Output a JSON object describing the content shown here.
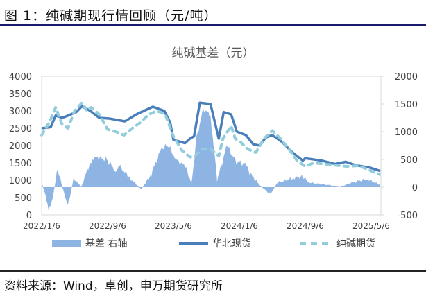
{
  "figure_title": "图 1：纯碱期现行情回顾（元/吨）",
  "source": "资料来源：Wind，卓创，申万期货研究所",
  "chart_data": {
    "type": "line",
    "title": "纯碱基差（元）",
    "x_unit": "months since 2022/1/6",
    "x_ticks": [
      {
        "m": 0,
        "label": "2022/1/6"
      },
      {
        "m": 8,
        "label": "2022/9/6"
      },
      {
        "m": 16,
        "label": "2023/5/6"
      },
      {
        "m": 24,
        "label": "2024/1/6"
      },
      {
        "m": 32,
        "label": "2024/9/6"
      },
      {
        "m": 40,
        "label": "2025/5/6"
      }
    ],
    "y_left": {
      "min": 0,
      "max": 4000,
      "ticks": [
        0,
        500,
        1000,
        1500,
        2000,
        2500,
        3000,
        3500,
        4000
      ]
    },
    "y_right": {
      "min": -500,
      "max": 2000,
      "ticks": [
        -500,
        0,
        500,
        1000,
        1500,
        2000
      ]
    },
    "legend_position": "bottom",
    "colors": {
      "basis": "#8eb4e3",
      "spot": "#4a7ebb",
      "futures": "#92cddc"
    },
    "series": [
      {
        "name": "基差 右轴",
        "axis": "right",
        "kind": "area",
        "points": [
          [
            0,
            100
          ],
          [
            0.84,
            -375
          ],
          [
            1.12,
            -375
          ],
          [
            1.96,
            333
          ],
          [
            2.5,
            0
          ],
          [
            3.2,
            -333
          ],
          [
            3.9,
            167
          ],
          [
            4.8,
            0
          ],
          [
            5.9,
            458
          ],
          [
            6.7,
            540
          ],
          [
            7.9,
            500
          ],
          [
            9,
            290
          ],
          [
            9.5,
            375
          ],
          [
            10.7,
            167
          ],
          [
            12.1,
            -40
          ],
          [
            13.2,
            208
          ],
          [
            14.6,
            708
          ],
          [
            15.4,
            750
          ],
          [
            16.3,
            500
          ],
          [
            17.4,
            375
          ],
          [
            18.2,
            80
          ],
          [
            18.8,
            875
          ],
          [
            19.6,
            1417
          ],
          [
            20.5,
            1290
          ],
          [
            21.3,
            125
          ],
          [
            22.5,
            750
          ],
          [
            23.6,
            458
          ],
          [
            24.7,
            417
          ],
          [
            25.5,
            208
          ],
          [
            26.7,
            0
          ],
          [
            27.8,
            -125
          ],
          [
            28.6,
            80
          ],
          [
            30.6,
            167
          ],
          [
            31.7,
            187
          ],
          [
            32.5,
            80
          ],
          [
            34.8,
            40
          ],
          [
            36.2,
            0
          ],
          [
            37.6,
            80
          ],
          [
            39.5,
            146
          ],
          [
            41.1,
            40
          ]
        ]
      },
      {
        "name": "华北现货",
        "axis": "left",
        "kind": "line",
        "points": [
          [
            0,
            2500
          ],
          [
            1.1,
            2533
          ],
          [
            1.7,
            2867
          ],
          [
            2.5,
            2800
          ],
          [
            3.2,
            2867
          ],
          [
            4.2,
            2967
          ],
          [
            4.9,
            3133
          ],
          [
            5.9,
            3000
          ],
          [
            7,
            2800
          ],
          [
            8.2,
            2780
          ],
          [
            10.1,
            2700
          ],
          [
            11.5,
            2900
          ],
          [
            13.5,
            3120
          ],
          [
            14.9,
            3000
          ],
          [
            15.6,
            2667
          ],
          [
            16,
            2167
          ],
          [
            17.4,
            2067
          ],
          [
            18,
            2200
          ],
          [
            18.5,
            2267
          ],
          [
            19.2,
            3233
          ],
          [
            20.5,
            3200
          ],
          [
            21.5,
            2200
          ],
          [
            22.1,
            2967
          ],
          [
            23,
            2900
          ],
          [
            23.7,
            2400
          ],
          [
            24.8,
            2300
          ],
          [
            25.7,
            2033
          ],
          [
            26.5,
            2000
          ],
          [
            27.2,
            2233
          ],
          [
            28,
            2300
          ],
          [
            29.2,
            2100
          ],
          [
            30.3,
            1833
          ],
          [
            31.7,
            1567
          ],
          [
            32,
            1633
          ],
          [
            34,
            1567
          ],
          [
            35.6,
            1467
          ],
          [
            36.9,
            1533
          ],
          [
            38.1,
            1433
          ],
          [
            39.8,
            1367
          ],
          [
            41.1,
            1267
          ]
        ]
      },
      {
        "name": "纯碱期货",
        "axis": "left",
        "kind": "dashed",
        "points": [
          [
            0,
            2300
          ],
          [
            1,
            2700
          ],
          [
            1.7,
            3100
          ],
          [
            2.5,
            2600
          ],
          [
            3.2,
            2500
          ],
          [
            4,
            3000
          ],
          [
            4.9,
            3233
          ],
          [
            5.5,
            3000
          ],
          [
            6,
            3100
          ],
          [
            7,
            2900
          ],
          [
            8,
            2467
          ],
          [
            9,
            2400
          ],
          [
            10,
            2300
          ],
          [
            11,
            2500
          ],
          [
            12,
            2667
          ],
          [
            13,
            2900
          ],
          [
            14,
            3000
          ],
          [
            15,
            2900
          ],
          [
            16,
            2267
          ],
          [
            17,
            1867
          ],
          [
            18,
            1667
          ],
          [
            18.6,
            1700
          ],
          [
            19.5,
            1900
          ],
          [
            20.5,
            1900
          ],
          [
            21.5,
            1700
          ],
          [
            22,
            2200
          ],
          [
            23,
            2567
          ],
          [
            23.5,
            2200
          ],
          [
            24,
            2133
          ],
          [
            25,
            1900
          ],
          [
            26,
            1800
          ],
          [
            27,
            2200
          ],
          [
            28,
            2433
          ],
          [
            29,
            2200
          ],
          [
            30,
            1900
          ],
          [
            31,
            1567
          ],
          [
            32,
            1400
          ],
          [
            33,
            1500
          ],
          [
            35,
            1450
          ],
          [
            37,
            1400
          ],
          [
            38.5,
            1420
          ],
          [
            40,
            1267
          ],
          [
            41,
            1167
          ]
        ]
      }
    ]
  }
}
